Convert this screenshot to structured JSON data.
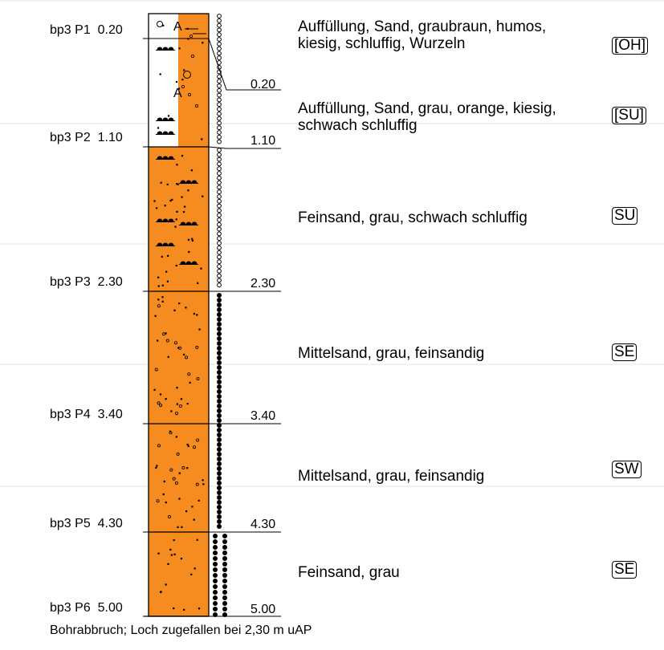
{
  "samples": [
    {
      "id": "bp3 P1",
      "depth": "0.20"
    },
    {
      "id": "bp3 P2",
      "depth": "1.10"
    },
    {
      "id": "bp3 P3",
      "depth": "2.30"
    },
    {
      "id": "bp3 P4",
      "depth": "3.40"
    },
    {
      "id": "bp3 P5",
      "depth": "4.30"
    },
    {
      "id": "bp3 P6",
      "depth": "5.00"
    }
  ],
  "layer_bottoms": [
    "0.20",
    "1.10",
    "2.30",
    "3.40",
    "4.30",
    "5.00"
  ],
  "layers": [
    {
      "description": "Auffüllung, Sand, graubraun, humos, kiesig, schluffig, Wurzeln",
      "soil_class": "[OH]",
      "color": "#ffffff"
    },
    {
      "description": "Auffüllung, Sand, grau, orange, kiesig, schwach schluffig",
      "soil_class": "[SU]",
      "color": "#ffffff"
    },
    {
      "description": "Feinsand, grau, schwach schluffig",
      "soil_class": "SU",
      "color": "#f68b1f"
    },
    {
      "description": "Mittelsand, grau, feinsandig",
      "soil_class": "SE",
      "color": "#f68b1f"
    },
    {
      "description": "Mittelsand, grau, feinsandig",
      "soil_class": "SW",
      "color": "#f68b1f"
    },
    {
      "description": "Feinsand, grau",
      "soil_class": "SE",
      "color": "#f68b1f"
    }
  ],
  "column": {
    "fill_color": "#f68b1f",
    "line_color": "#000000"
  },
  "symbols": {
    "filling_mark": "A"
  },
  "footer": "Bohrabbruch; Loch zugefallen bei 2,30 m uAP"
}
